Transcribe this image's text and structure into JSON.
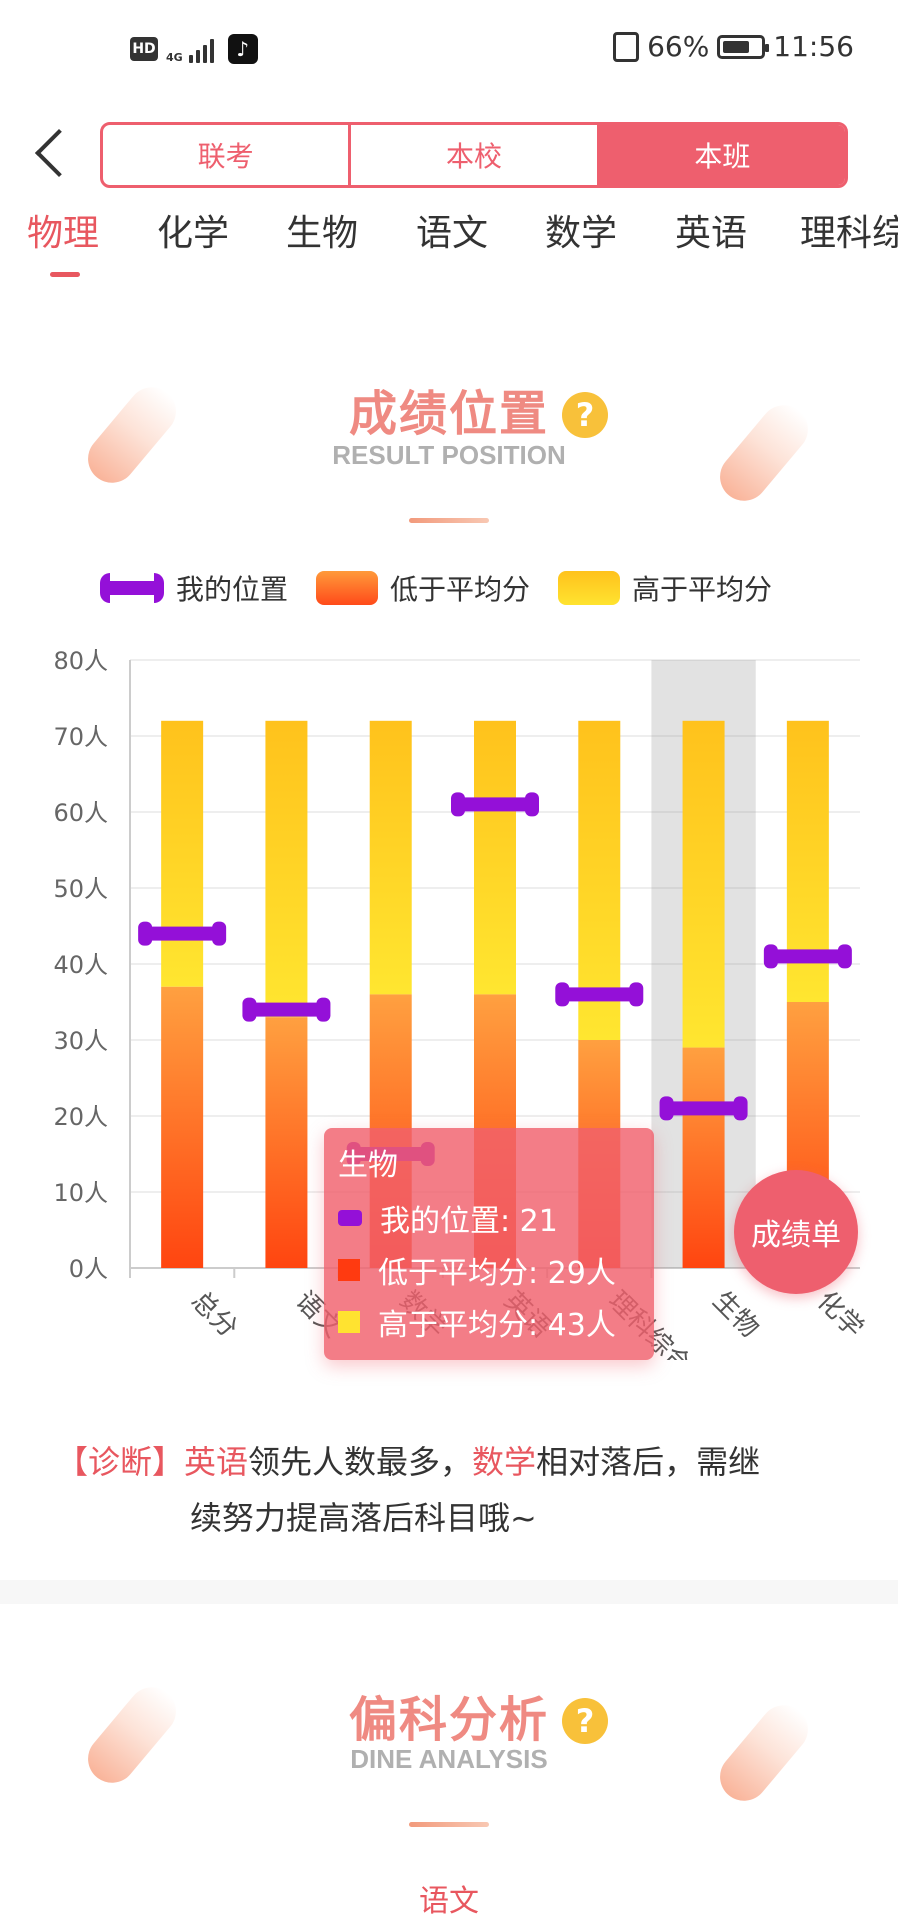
{
  "status_bar": {
    "hd": "HD",
    "network": "4G",
    "battery": "66%",
    "time": "11:56"
  },
  "header": {
    "segments": [
      "联考",
      "本校",
      "本班"
    ],
    "active_segment": 2
  },
  "subject_tabs": [
    "物理",
    "化学",
    "生物",
    "语文",
    "数学",
    "英语",
    "理科综"
  ],
  "active_subject": 0,
  "section1": {
    "title": "成绩位置",
    "subtitle": "RESULT POSITION",
    "help": "?"
  },
  "legend": {
    "my_position": "我的位置",
    "below_avg": "低于平均分",
    "above_avg": "高于平均分"
  },
  "colors": {
    "accent": "#ee5f6e",
    "purple": "#9410d8",
    "orange": "#ff4a1a",
    "yellow": "#ffd21c"
  },
  "chart_data": {
    "type": "bar",
    "stacked": true,
    "categories": [
      "总分",
      "语文",
      "数学",
      "英语",
      "理科综合",
      "生物",
      "化学"
    ],
    "yticks": [
      "0人",
      "10人",
      "20人",
      "30人",
      "40人",
      "50人",
      "60人",
      "70人",
      "80人"
    ],
    "ylim": [
      0,
      80
    ],
    "series": [
      {
        "name": "低于平均分",
        "values": [
          37,
          33,
          36,
          36,
          30,
          29,
          35
        ]
      },
      {
        "name": "高于平均分",
        "values": [
          35,
          39,
          36,
          36,
          42,
          43,
          37
        ]
      }
    ],
    "my_position": {
      "name": "我的位置",
      "values": [
        44,
        34,
        15,
        61,
        36,
        21,
        41
      ]
    },
    "highlighted_category": 5,
    "grid": true,
    "legend_position": "top"
  },
  "tooltip": {
    "title": "生物",
    "my_position": "我的位置: 21",
    "below": "低于平均分: 29人",
    "above": "高于平均分: 43人"
  },
  "fab": {
    "label": "成绩单"
  },
  "diagnosis": {
    "tag": "【诊断】",
    "subject1": "英语",
    "text1": "领先人数最多，",
    "subject2": "数学",
    "text2": "相对落后，需继",
    "text3": "续努力提高落后科目哦~"
  },
  "section2": {
    "title": "偏科分析",
    "subtitle": "DINE ANALYSIS",
    "help": "?"
  },
  "bottom_label": "语文"
}
